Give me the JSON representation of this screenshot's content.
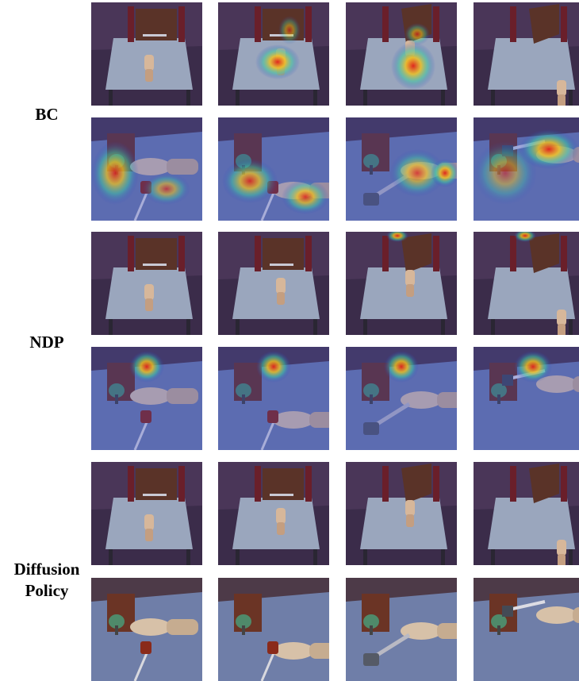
{
  "groups": [
    {
      "lines": [
        "BC"
      ]
    },
    {
      "lines": [
        "NDP"
      ]
    },
    {
      "lines": [
        "Diffusion",
        "Policy"
      ]
    }
  ]
}
